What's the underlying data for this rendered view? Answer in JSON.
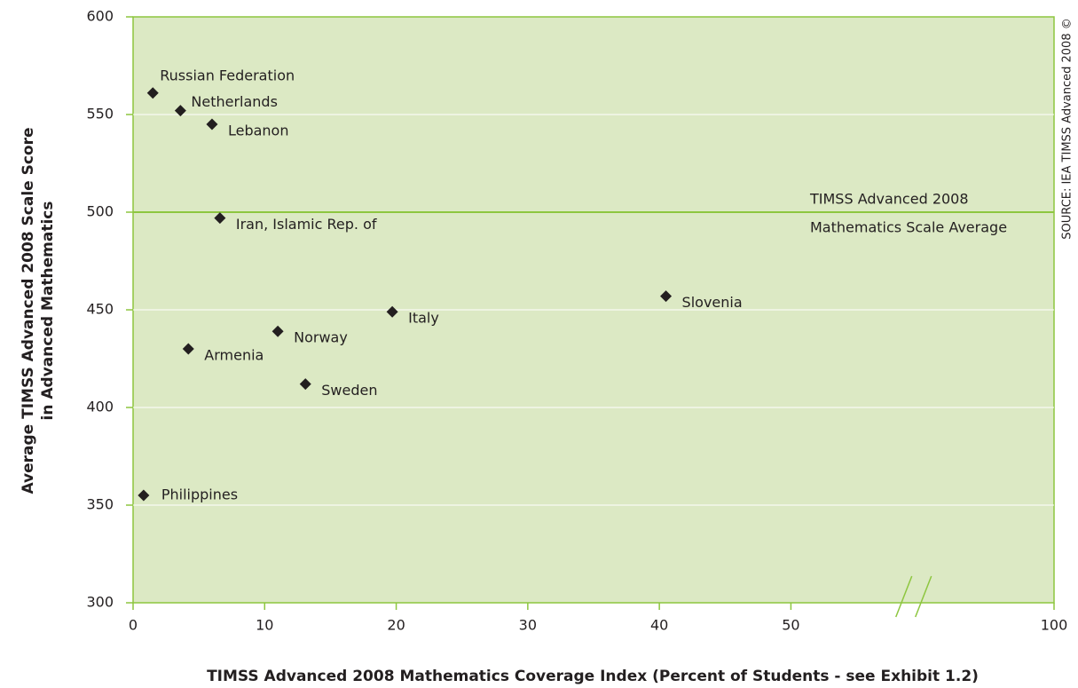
{
  "chart_data": {
    "type": "scatter",
    "xlabel": "TIMSS Advanced 2008 Mathematics Coverage Index (Percent of Students - see Exhibit 1.2)",
    "ylabel": [
      "Average TIMSS Advanced 2008 Scale Score",
      "in Advanced Mathematics"
    ],
    "source": "SOURCE: IEA TIMSS Advanced 2008 ©",
    "reference_line": {
      "value": 500,
      "label": [
        "TIMSS Advanced 2008",
        "Mathematics Scale Average"
      ],
      "color": "#8dc63f"
    },
    "series": [
      {
        "color": "#231f20",
        "labels": [
          "Russian Federation",
          "Netherlands",
          "Lebanon",
          "Iran, Islamic Rep. of",
          "Slovenia",
          "Italy",
          "Norway",
          "Armenia",
          "Sweden",
          "Philippines"
        ],
        "x": [
          1.5,
          3.6,
          6.0,
          6.6,
          40.5,
          19.7,
          11.0,
          4.2,
          13.1,
          0.8
        ],
        "values": [
          561,
          552,
          545,
          497,
          457,
          449,
          439,
          430,
          412,
          355
        ]
      }
    ],
    "xlim": [
      0,
      100
    ],
    "xticks": [
      0,
      10,
      20,
      30,
      40,
      50,
      100
    ],
    "x_axis_break": true,
    "ylim": [
      300,
      600
    ],
    "yticks": [
      300,
      350,
      400,
      450,
      500,
      550,
      600
    ],
    "grid": true,
    "plot_background": "#dce9c4",
    "frame_color": "#8dc63f"
  }
}
